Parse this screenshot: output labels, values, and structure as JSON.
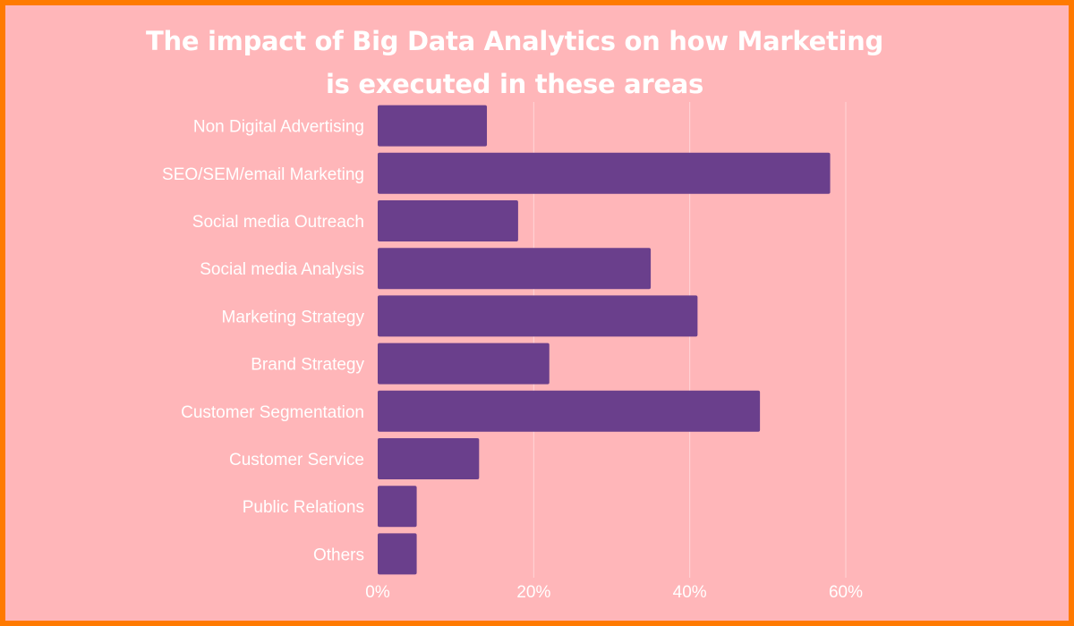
{
  "colors": {
    "border": "#ff7a00",
    "background": "#ffb6b9",
    "bar": "#6a3f8c",
    "text": "#ffffff"
  },
  "chart_data": {
    "type": "bar",
    "orientation": "horizontal",
    "title_lines": [
      "The impact of Big Data Analytics  on how Marketing",
      "is executed in these areas"
    ],
    "categories": [
      "Non Digital Advertising",
      "SEO/SEM/email Marketing",
      "Social media Outreach",
      "Social media Analysis",
      "Marketing Strategy",
      "Brand Strategy",
      "Customer Segmentation",
      "Customer Service",
      "Public Relations",
      "Others"
    ],
    "values": [
      14,
      58,
      18,
      35,
      41,
      22,
      49,
      13,
      5,
      5
    ],
    "xlim": [
      0,
      60
    ],
    "xticks": [
      0,
      20,
      40,
      60
    ],
    "xtick_labels": [
      "0%",
      "20%",
      "40%",
      "60%"
    ],
    "grid": true,
    "legend": "none"
  }
}
